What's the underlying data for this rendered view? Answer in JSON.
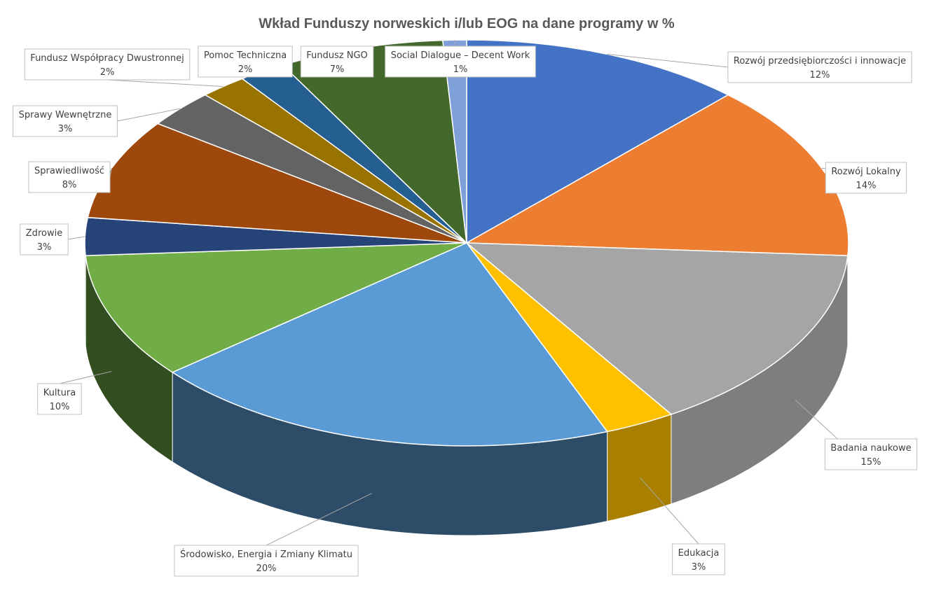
{
  "chart_data": {
    "type": "pie",
    "title": "Wkład Funduszy norweskich i/lub EOG na dane programy w %",
    "slices": [
      {
        "name": "Rozwój przedsiębiorczości i innowacje",
        "value": 12,
        "label": "12%",
        "color": "#4472C4"
      },
      {
        "name": "Rozwój Lokalny",
        "value": 14,
        "label": "14%",
        "color": "#ED7D31"
      },
      {
        "name": "Badania naukowe",
        "value": 15,
        "label": "15%",
        "color": "#A5A5A5"
      },
      {
        "name": "Edukacja",
        "value": 3,
        "label": "3%",
        "color": "#FFC000"
      },
      {
        "name": "Środowisko, Energia i Zmiany Klimatu",
        "value": 20,
        "label": "20%",
        "color": "#5B9BD5"
      },
      {
        "name": "Kultura",
        "value": 10,
        "label": "10%",
        "color": "#70AD47"
      },
      {
        "name": "Zdrowie",
        "value": 3,
        "label": "3%",
        "color": "#264478"
      },
      {
        "name": "Sprawiedliwość",
        "value": 8,
        "label": "8%",
        "color": "#9E480E"
      },
      {
        "name": "Sprawy Wewnętrzne",
        "value": 3,
        "label": "3%",
        "color": "#636363"
      },
      {
        "name": "Fundusz Współpracy Dwustronnej",
        "value": 2,
        "label": "2%",
        "color": "#997300"
      },
      {
        "name": "Pomoc Techniczna",
        "value": 2,
        "label": "2%",
        "color": "#255E91"
      },
      {
        "name": "Fundusz NGO",
        "value": 7,
        "label": "7%",
        "color": "#43682B"
      },
      {
        "name": "Social Dialogue – Decent Work",
        "value": 1,
        "label": "1%",
        "color": "#7F9FD9"
      }
    ],
    "view": "3d-tilted",
    "data_labels": "outside-with-leader-lines",
    "legend": "none"
  }
}
